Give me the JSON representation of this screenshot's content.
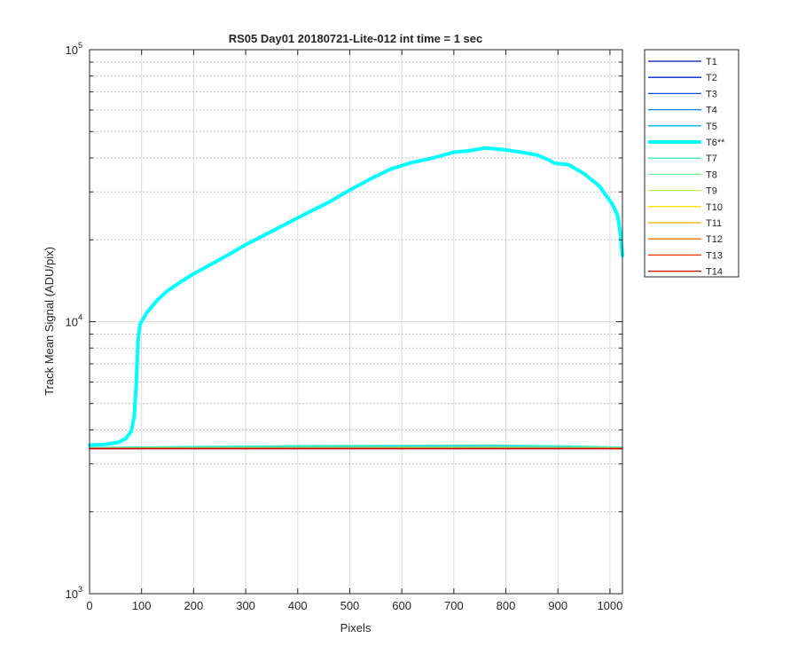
{
  "chart_data": {
    "type": "line",
    "title": "RS05 Day01 20180721-Lite-012 int time = 1 sec",
    "xlabel": "Pixels",
    "ylabel": "Track Mean Signal (ADU/pix)",
    "xlim": [
      0,
      1024
    ],
    "ylim": [
      1000,
      100000
    ],
    "y_scale": "log",
    "grid": true,
    "minor_grid": true,
    "legend_position": "outside-right",
    "x_ticks": [
      0,
      100,
      200,
      300,
      400,
      500,
      600,
      700,
      800,
      900,
      1000
    ],
    "x_tick_labels": [
      "0",
      "100",
      "200",
      "300",
      "400",
      "500",
      "600",
      "700",
      "800",
      "900",
      "1000"
    ],
    "y_ticks": [
      {
        "value": 1000,
        "base": "10",
        "exp": "3"
      },
      {
        "value": 10000,
        "base": "10",
        "exp": "4"
      },
      {
        "value": 100000,
        "base": "10",
        "exp": "5"
      }
    ],
    "series": [
      {
        "name": "T1",
        "color": "#0010a0",
        "width": 1.3,
        "points": [
          [
            0,
            3420
          ],
          [
            1024,
            3420
          ]
        ]
      },
      {
        "name": "T2",
        "color": "#0020d0",
        "width": 1.3,
        "points": [
          [
            0,
            3420
          ],
          [
            1024,
            3420
          ]
        ]
      },
      {
        "name": "T3",
        "color": "#0050e8",
        "width": 1.3,
        "points": [
          [
            0,
            3420
          ],
          [
            1024,
            3420
          ]
        ]
      },
      {
        "name": "T4",
        "color": "#0080f0",
        "width": 1.3,
        "points": [
          [
            0,
            3420
          ],
          [
            1024,
            3420
          ]
        ]
      },
      {
        "name": "T5",
        "color": "#00b4f4",
        "width": 1.3,
        "points": [
          [
            0,
            3440
          ],
          [
            200,
            3460
          ],
          [
            400,
            3475
          ],
          [
            600,
            3480
          ],
          [
            800,
            3480
          ],
          [
            1024,
            3450
          ]
        ]
      },
      {
        "name": "T6**",
        "color": "#00ffff",
        "width": 4,
        "points": [
          [
            0,
            3520
          ],
          [
            30,
            3540
          ],
          [
            55,
            3600
          ],
          [
            70,
            3720
          ],
          [
            80,
            3950
          ],
          [
            86,
            4500
          ],
          [
            90,
            6000
          ],
          [
            93,
            8500
          ],
          [
            97,
            9800
          ],
          [
            110,
            10800
          ],
          [
            130,
            12000
          ],
          [
            150,
            13000
          ],
          [
            175,
            14000
          ],
          [
            200,
            15000
          ],
          [
            240,
            16500
          ],
          [
            275,
            18000
          ],
          [
            300,
            19200
          ],
          [
            340,
            21000
          ],
          [
            380,
            23000
          ],
          [
            420,
            25200
          ],
          [
            460,
            27500
          ],
          [
            500,
            30500
          ],
          [
            540,
            33500
          ],
          [
            580,
            36500
          ],
          [
            620,
            38500
          ],
          [
            660,
            40000
          ],
          [
            700,
            42000
          ],
          [
            730,
            42500
          ],
          [
            760,
            43500
          ],
          [
            780,
            43200
          ],
          [
            800,
            42800
          ],
          [
            830,
            42000
          ],
          [
            860,
            41000
          ],
          [
            880,
            39500
          ],
          [
            895,
            38200
          ],
          [
            920,
            37800
          ],
          [
            950,
            35000
          ],
          [
            980,
            31500
          ],
          [
            1005,
            27000
          ],
          [
            1015,
            24500
          ],
          [
            1020,
            21000
          ],
          [
            1024,
            17500
          ]
        ]
      },
      {
        "name": "T7",
        "color": "#40f0c0",
        "width": 1.3,
        "points": [
          [
            0,
            3450
          ],
          [
            200,
            3480
          ],
          [
            400,
            3500
          ],
          [
            600,
            3510
          ],
          [
            760,
            3520
          ],
          [
            900,
            3500
          ],
          [
            1024,
            3460
          ]
        ]
      },
      {
        "name": "T8",
        "color": "#70f090",
        "width": 1.3,
        "points": [
          [
            0,
            3430
          ],
          [
            300,
            3450
          ],
          [
            600,
            3460
          ],
          [
            800,
            3460
          ],
          [
            1024,
            3440
          ]
        ]
      },
      {
        "name": "T9",
        "color": "#b4f050",
        "width": 1.3,
        "points": [
          [
            0,
            3420
          ],
          [
            1024,
            3420
          ]
        ]
      },
      {
        "name": "T10",
        "color": "#f0e000",
        "width": 1.3,
        "points": [
          [
            0,
            3420
          ],
          [
            1024,
            3420
          ]
        ]
      },
      {
        "name": "T11",
        "color": "#f4b000",
        "width": 1.3,
        "points": [
          [
            0,
            3420
          ],
          [
            1024,
            3420
          ]
        ]
      },
      {
        "name": "T12",
        "color": "#f47000",
        "width": 1.3,
        "points": [
          [
            0,
            3420
          ],
          [
            1024,
            3420
          ]
        ]
      },
      {
        "name": "T13",
        "color": "#f03000",
        "width": 1.3,
        "points": [
          [
            0,
            3420
          ],
          [
            1024,
            3420
          ]
        ]
      },
      {
        "name": "T14",
        "color": "#d00000",
        "width": 1.3,
        "points": [
          [
            0,
            3410
          ],
          [
            1024,
            3410
          ]
        ]
      }
    ]
  }
}
